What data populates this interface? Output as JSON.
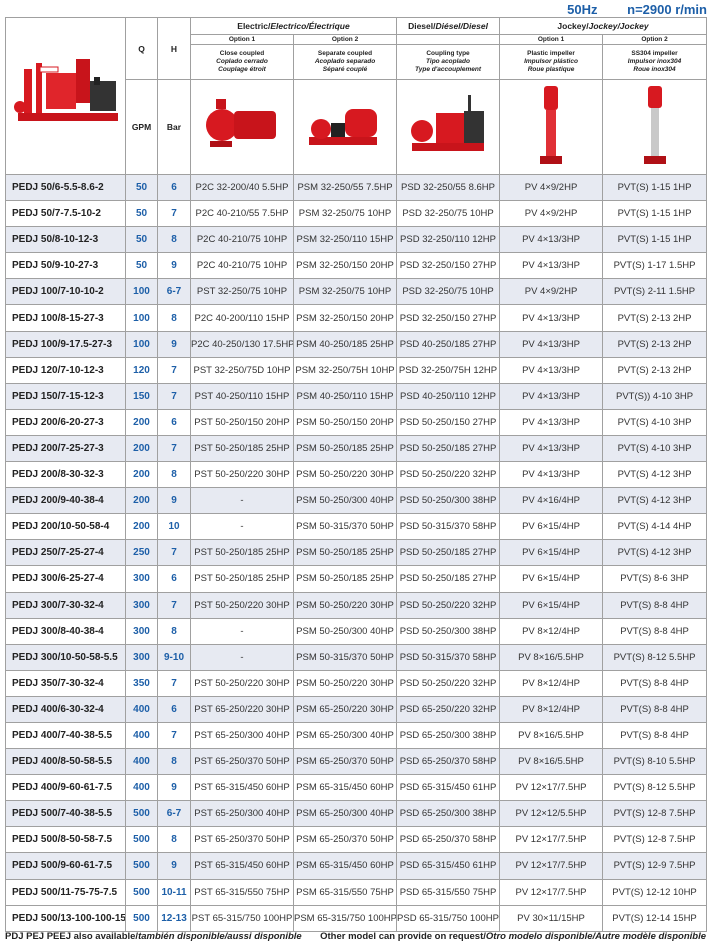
{
  "header": {
    "frequency": "50Hz",
    "speed": "n=2900 r/min"
  },
  "columns": {
    "q": "Q",
    "h": "H",
    "q_unit": "GPM",
    "h_unit": "Bar",
    "electric": {
      "title": "Electric/",
      "title_i": "Electrico/Électrique",
      "option1": "Option 1",
      "option2": "Option 2",
      "option1_desc": [
        "Close coupled",
        "Coplado cerrado",
        "Couplage étroit"
      ],
      "option2_desc": [
        "Separate coupled",
        "Acoplado separado",
        "Séparé couplé"
      ]
    },
    "diesel": {
      "title": "Diesel/",
      "title_i": "Diésel/Diesel",
      "desc": [
        "Coupling type",
        "Tipo acoplado",
        "Type d'accouplement"
      ]
    },
    "jockey": {
      "title": "Jockey/",
      "title_i": "Jockey/Jockey",
      "option1": "Option 1",
      "option2": "Option 2",
      "option1_desc": [
        "Plastic impeller",
        "Impulsor plástico",
        "Roue plastique"
      ],
      "option2_desc": [
        "SS304 impeller",
        "Impulsor inox304",
        "Roue inox304"
      ]
    }
  },
  "images": [
    "pump-set-photo",
    "close-coupled-pump-photo",
    "separate-coupled-pump-photo",
    "diesel-pump-photo",
    "plastic-jockey-pump-photo",
    "ss304-jockey-pump-photo"
  ],
  "colors": {
    "accent": "#1d5fa8",
    "row_shade": "#e7eaf2",
    "pump_red": "#d71920"
  },
  "rows": [
    [
      "PEDJ 50/6-5.5-8.6-2",
      "50",
      "6",
      "P2C 32-200/40 5.5HP",
      "PSM 32-250/55 7.5HP",
      "PSD 32-250/55 8.6HP",
      "PV 4×9/2HP",
      "PVT(S) 1-15 1HP"
    ],
    [
      "PEDJ 50/7-7.5-10-2",
      "50",
      "7",
      "P2C 40-210/55 7.5HP",
      "PSM 32-250/75 10HP",
      "PSD 32-250/75 10HP",
      "PV 4×9/2HP",
      "PVT(S) 1-15 1HP"
    ],
    [
      "PEDJ 50/8-10-12-3",
      "50",
      "8",
      "P2C 40-210/75 10HP",
      "PSM 32-250/110 15HP",
      "PSD 32-250/110 12HP",
      "PV 4×13/3HP",
      "PVT(S) 1-15 1HP"
    ],
    [
      "PEDJ 50/9-10-27-3",
      "50",
      "9",
      "P2C 40-210/75 10HP",
      "PSM 32-250/150 20HP",
      "PSD 32-250/150 27HP",
      "PV 4×13/3HP",
      "PVT(S) 1-17 1.5HP"
    ],
    [
      "PEDJ 100/7-10-10-2",
      "100",
      "6-7",
      "PST 32-250/75 10HP",
      "PSM 32-250/75 10HP",
      "PSD 32-250/75 10HP",
      "PV 4×9/2HP",
      "PVT(S) 2-11 1.5HP"
    ],
    [
      "PEDJ 100/8-15-27-3",
      "100",
      "8",
      "P2C 40-200/110 15HP",
      "PSM 32-250/150 20HP",
      "PSD 32-250/150 27HP",
      "PV 4×13/3HP",
      "PVT(S) 2-13 2HP"
    ],
    [
      "PEDJ 100/9-17.5-27-3",
      "100",
      "9",
      "P2C 40-250/130 17.5HP",
      "PSM 40-250/185 25HP",
      "PSD 40-250/185 27HP",
      "PV 4×13/3HP",
      "PVT(S) 2-13 2HP"
    ],
    [
      "PEDJ 120/7-10-12-3",
      "120",
      "7",
      "PST 32-250/75D 10HP",
      "PSM 32-250/75H 10HP",
      "PSD 32-250/75H 12HP",
      "PV 4×13/3HP",
      "PVT(S) 2-13 2HP"
    ],
    [
      "PEDJ 150/7-15-12-3",
      "150",
      "7",
      "PST 40-250/110 15HP",
      "PSM 40-250/110 15HP",
      "PSD 40-250/110 12HP",
      "PV 4×13/3HP",
      "PVT(S)) 4-10 3HP"
    ],
    [
      "PEDJ 200/6-20-27-3",
      "200",
      "6",
      "PST 50-250/150 20HP",
      "PSM 50-250/150 20HP",
      "PSD 50-250/150 27HP",
      "PV 4×13/3HP",
      "PVT(S) 4-10 3HP"
    ],
    [
      "PEDJ 200/7-25-27-3",
      "200",
      "7",
      "PST 50-250/185 25HP",
      "PSM 50-250/185 25HP",
      "PSD 50-250/185 27HP",
      "PV 4×13/3HP",
      "PVT(S) 4-10 3HP"
    ],
    [
      "PEDJ 200/8-30-32-3",
      "200",
      "8",
      "PST 50-250/220 30HP",
      "PSM 50-250/220 30HP",
      "PSD 50-250/220 32HP",
      "PV 4×13/3HP",
      "PVT(S) 4-12 3HP"
    ],
    [
      "PEDJ 200/9-40-38-4",
      "200",
      "9",
      "-",
      "PSM 50-250/300 40HP",
      "PSD 50-250/300 38HP",
      "PV 4×16/4HP",
      "PVT(S) 4-12 3HP"
    ],
    [
      "PEDJ 200/10-50-58-4",
      "200",
      "10",
      "-",
      "PSM 50-315/370 50HP",
      "PSD 50-315/370 58HP",
      "PV 6×15/4HP",
      "PVT(S) 4-14 4HP"
    ],
    [
      "PEDJ 250/7-25-27-4",
      "250",
      "7",
      "PST 50-250/185 25HP",
      "PSM 50-250/185 25HP",
      "PSD 50-250/185 27HP",
      "PV 6×15/4HP",
      "PVT(S) 4-12 3HP"
    ],
    [
      "PEDJ 300/6-25-27-4",
      "300",
      "6",
      "PST 50-250/185 25HP",
      "PSM 50-250/185 25HP",
      "PSD 50-250/185 27HP",
      "PV 6×15/4HP",
      "PVT(S) 8-6 3HP"
    ],
    [
      "PEDJ 300/7-30-32-4",
      "300",
      "7",
      "PST 50-250/220 30HP",
      "PSM 50-250/220 30HP",
      "PSD 50-250/220 32HP",
      "PV 6×15/4HP",
      "PVT(S) 8-8 4HP"
    ],
    [
      "PEDJ 300/8-40-38-4",
      "300",
      "8",
      "-",
      "PSM 50-250/300 40HP",
      "PSD 50-250/300 38HP",
      "PV 8×12/4HP",
      "PVT(S) 8-8 4HP"
    ],
    [
      "PEDJ 300/10-50-58-5.5",
      "300",
      "9-10",
      "-",
      "PSM 50-315/370 50HP",
      "PSD 50-315/370 58HP",
      "PV 8×16/5.5HP",
      "PVT(S) 8-12 5.5HP"
    ],
    [
      "PEDJ 350/7-30-32-4",
      "350",
      "7",
      "PST 50-250/220 30HP",
      "PSM 50-250/220 30HP",
      "PSD 50-250/220 32HP",
      "PV 8×12/4HP",
      "PVT(S) 8-8 4HP"
    ],
    [
      "PEDJ 400/6-30-32-4",
      "400",
      "6",
      "PST 65-250/220 30HP",
      "PSM 65-250/220 30HP",
      "PSD 65-250/220 32HP",
      "PV 8×12/4HP",
      "PVT(S) 8-8 4HP"
    ],
    [
      "PEDJ 400/7-40-38-5.5",
      "400",
      "7",
      "PST 65-250/300 40HP",
      "PSM 65-250/300 40HP",
      "PSD 65-250/300 38HP",
      "PV 8×16/5.5HP",
      "PVT(S) 8-8 4HP"
    ],
    [
      "PEDJ 400/8-50-58-5.5",
      "400",
      "8",
      "PST 65-250/370 50HP",
      "PSM 65-250/370 50HP",
      "PSD 65-250/370 58HP",
      "PV 8×16/5.5HP",
      "PVT(S) 8-10 5.5HP"
    ],
    [
      "PEDJ 400/9-60-61-7.5",
      "400",
      "9",
      "PST 65-315/450 60HP",
      "PSM 65-315/450 60HP",
      "PSD 65-315/450 61HP",
      "PV 12×17/7.5HP",
      "PVT(S) 8-12 5.5HP"
    ],
    [
      "PEDJ 500/7-40-38-5.5",
      "500",
      "6-7",
      "PST 65-250/300 40HP",
      "PSM 65-250/300 40HP",
      "PSD 65-250/300 38HP",
      "PV 12×12/5.5HP",
      "PVT(S) 12-8 7.5HP"
    ],
    [
      "PEDJ 500/8-50-58-7.5",
      "500",
      "8",
      "PST 65-250/370 50HP",
      "PSM 65-250/370 50HP",
      "PSD 65-250/370 58HP",
      "PV 12×17/7.5HP",
      "PVT(S) 12-8 7.5HP"
    ],
    [
      "PEDJ 500/9-60-61-7.5",
      "500",
      "9",
      "PST 65-315/450 60HP",
      "PSM 65-315/450 60HP",
      "PSD 65-315/450 61HP",
      "PV 12×17/7.5HP",
      "PVT(S) 12-9 7.5HP"
    ],
    [
      "PEDJ 500/11-75-75-7.5",
      "500",
      "10-11",
      "PST 65-315/550 75HP",
      "PSM 65-315/550 75HP",
      "PSD 65-315/550 75HP",
      "PV 12×17/7.5HP",
      "PVT(S) 12-12 10HP"
    ],
    [
      "PEDJ 500/13-100-100-15",
      "500",
      "12-13",
      "PST 65-315/750 100HP",
      "PSM 65-315/750 100HP",
      "PSD 65-315/750 100HP",
      "PV 30×11/15HP",
      "PVT(S) 12-14 15HP"
    ]
  ],
  "footer": {
    "left": "PDJ PEJ PEEJ also available/",
    "left_i": "también disponible/aussi disponible",
    "right": "Other model can provide on request/",
    "right_i": "Otro modelo disponible/Autre modèle disponible"
  }
}
